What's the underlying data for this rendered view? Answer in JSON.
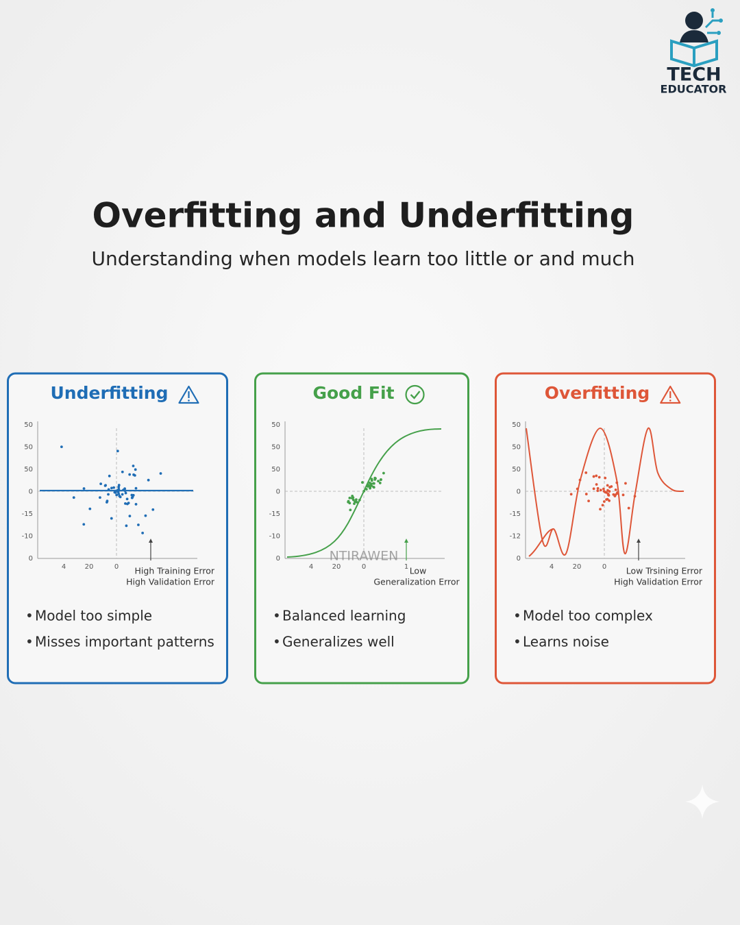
{
  "brand": {
    "line1": "TECH",
    "line2": "EDUCATOR"
  },
  "header": {
    "title": "Overfitting and Underfitting",
    "subtitle": "Understanding when models learn too little or and much"
  },
  "panels": [
    {
      "title": "Underfitting",
      "y_labels": [
        "50",
        "50",
        "50",
        "0",
        "-15",
        "-10",
        "0"
      ],
      "x_labels": [
        "4",
        "20",
        "0"
      ],
      "annotation": [
        "High Training Error",
        "High Validation Error"
      ],
      "bullets": [
        "Model too simple",
        "Misses important patterns"
      ]
    },
    {
      "title": "Good Fit",
      "y_labels": [
        "50",
        "50",
        "50",
        "0",
        "-15",
        "-10",
        "0"
      ],
      "x_labels": [
        "4",
        "20",
        "0",
        "1"
      ],
      "annotation": [
        "Low",
        "Generalization Error"
      ],
      "watermark": "NTIRAWEN",
      "bullets": [
        "Balanced learning",
        "Generalizes well"
      ]
    },
    {
      "title": "Overfitting",
      "y_labels": [
        "50",
        "50",
        "50",
        "0",
        "-15",
        "-12",
        "0"
      ],
      "x_labels": [
        "4",
        "20",
        "0"
      ],
      "annotation": [
        "Low Trsining Error",
        "High Validation Error"
      ],
      "bullets": [
        "Model too complex",
        "Learns noise"
      ]
    }
  ]
}
